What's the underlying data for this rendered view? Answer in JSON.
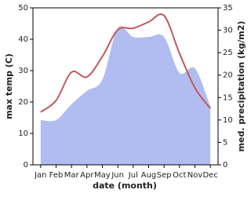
{
  "chart_data": {
    "type": "line",
    "categories": [
      "Jan",
      "Feb",
      "Mar",
      "Apr",
      "May",
      "Jun",
      "Jul",
      "Aug",
      "Sep",
      "Oct",
      "Nov",
      "Dec"
    ],
    "series": [
      {
        "name": "med. precipitation (kg/m2)",
        "type": "area",
        "axis": "y2",
        "color": "#b1bdf0",
        "values": [
          10,
          10,
          13.5,
          16.5,
          19,
          30.5,
          28.5,
          28.5,
          28.5,
          20.5,
          21.5,
          13
        ]
      },
      {
        "name": "max temp (C)",
        "type": "line",
        "color": "#c4575a",
        "values": [
          16.8,
          20.5,
          29.5,
          28,
          34.5,
          43,
          43.5,
          45.5,
          47.5,
          35.5,
          24.5,
          18
        ]
      }
    ],
    "xlabel": "date (month)",
    "ylabel": "max temp (C)",
    "y2label": "med. precipitation (kg/m2)",
    "ylim": [
      0,
      50
    ],
    "yticks": [
      0,
      10,
      20,
      30,
      40,
      50
    ],
    "y2lim": [
      0,
      35
    ],
    "y2ticks": [
      0,
      5,
      10,
      15,
      20,
      25,
      30,
      35
    ]
  }
}
